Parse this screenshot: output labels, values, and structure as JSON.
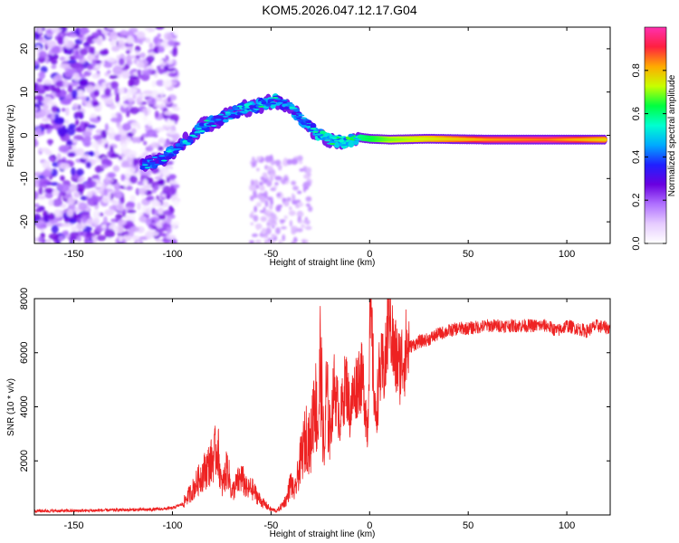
{
  "title": "KOM5.2026.047.12.17.G04",
  "chart_data": [
    {
      "type": "heatmap",
      "name": "spectrogram",
      "xlabel": "Height of straight line (km)",
      "ylabel": "Frequency (Hz)",
      "xlim": [
        -170,
        122
      ],
      "ylim": [
        -25,
        25
      ],
      "xticks": [
        -150,
        -100,
        -50,
        0,
        50,
        100
      ],
      "yticks": [
        -20,
        -10,
        0,
        10,
        20
      ],
      "colorbar": {
        "label": "Normalized spectral amplitude",
        "range": [
          0,
          1
        ],
        "ticks": [
          0.0,
          0.2,
          0.4,
          0.6,
          0.8
        ],
        "colors": [
          "#ffffff",
          "#e6ccff",
          "#b070ff",
          "#6a00e0",
          "#2020ff",
          "#00aaff",
          "#00ffd0",
          "#00ff40",
          "#c8ff00",
          "#ffaa00",
          "#ff2040",
          "#ff30b0"
        ]
      },
      "ridge": {
        "x": [
          -115,
          -105,
          -95,
          -85,
          -75,
          -65,
          -55,
          -48,
          -42,
          -35,
          -28,
          -20,
          -12,
          -5,
          0,
          10,
          30,
          60,
          90,
          120
        ],
        "freq": [
          -7,
          -5.5,
          -2,
          2,
          4,
          6,
          7,
          8,
          7,
          4,
          1,
          -1,
          -1.5,
          -0.5,
          -0.8,
          -1,
          -0.8,
          -1,
          -1,
          -1
        ],
        "amplitude": [
          0.25,
          0.3,
          0.35,
          0.35,
          0.3,
          0.35,
          0.4,
          0.35,
          0.3,
          0.35,
          0.4,
          0.45,
          0.5,
          0.55,
          0.6,
          0.7,
          0.8,
          0.95,
          1.0,
          0.85
        ]
      }
    },
    {
      "type": "line",
      "name": "snr",
      "xlabel": "Height of straight line (km)",
      "ylabel": "SNR (10 * v/v)",
      "xlim": [
        -170,
        122
      ],
      "ylim": [
        0,
        8000
      ],
      "xticks": [
        -150,
        -100,
        -50,
        0,
        50,
        100
      ],
      "yticks": [
        2000,
        4000,
        6000,
        8000
      ],
      "color": "#ee2222",
      "series": [
        {
          "name": "SNR",
          "x": [
            -170,
            -150,
            -130,
            -110,
            -100,
            -95,
            -90,
            -85,
            -80,
            -77,
            -75,
            -72,
            -70,
            -67,
            -65,
            -62,
            -60,
            -55,
            -50,
            -47,
            -45,
            -42,
            -40,
            -38,
            -35,
            -32,
            -30,
            -28,
            -26,
            -25,
            -23,
            -22,
            -20,
            -18,
            -15,
            -12,
            -10,
            -8,
            -5,
            -3,
            -1,
            0,
            1,
            2,
            3,
            5,
            8,
            10,
            12,
            15,
            18,
            20,
            25,
            30,
            35,
            40,
            45,
            50,
            60,
            70,
            80,
            90,
            95,
            100,
            105,
            110,
            115,
            122
          ],
          "y": [
            150,
            150,
            180,
            200,
            250,
            400,
            900,
            1500,
            2000,
            2500,
            1000,
            1800,
            800,
            1200,
            1400,
            900,
            1000,
            500,
            200,
            150,
            300,
            600,
            1200,
            800,
            2000,
            3000,
            2500,
            4500,
            3200,
            5800,
            2000,
            4500,
            3000,
            4800,
            3500,
            5000,
            3800,
            4500,
            5200,
            4800,
            3000,
            7000,
            6800,
            5000,
            3500,
            5200,
            5500,
            8000,
            6000,
            5500,
            6000,
            6200,
            6400,
            6500,
            6700,
            6800,
            6900,
            6900,
            7000,
            7000,
            7000,
            7000,
            6800,
            7000,
            6900,
            6800,
            7000,
            6900
          ]
        }
      ]
    }
  ]
}
